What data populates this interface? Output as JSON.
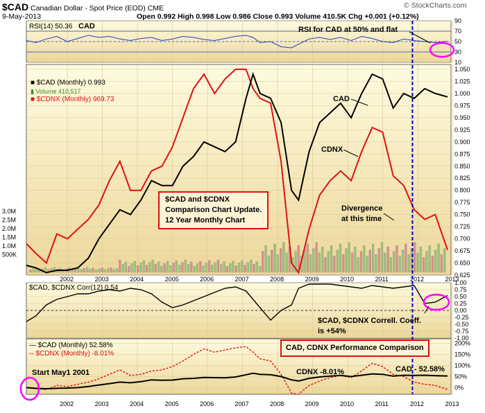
{
  "header": {
    "symbol": "$CAD",
    "name": "Canadian Dollar - Spot Price (EOD)",
    "exchange": "CME",
    "date": "9-May-2013",
    "watermark": "© StockCharts.com",
    "ohlc": "Open 0.992   High 0.998   Low 0.986   Close 0.993   Volume 410.5K   Chg +0.001 (+0.12%)"
  },
  "colors": {
    "cad": "#000000",
    "cdnx": "#e01010",
    "rsi": "#2040c8",
    "panel_top": "#fff6cc",
    "panel_bottom": "#e8d8a0",
    "marker": "#ff00ff",
    "divider": "#0000c0"
  },
  "panels": {
    "rsi": {
      "label": "RSI(14) 50.36",
      "tag": "CAD",
      "ticks": [
        "90",
        "70",
        "50",
        "30",
        "10"
      ]
    },
    "main": {
      "legend": [
        "$CAD (Monthly) 0.993",
        "Volume 410,517",
        "$CDNX (Monthly) 969.73"
      ],
      "right_ticks": [
        "1.050",
        "1.025",
        "1.000",
        "0.975",
        "0.950",
        "0.925",
        "0.900",
        "0.875",
        "0.850",
        "0.825",
        "0.800",
        "0.775",
        "0.750",
        "0.725",
        "0.700",
        "0.675",
        "0.650",
        "0.625"
      ],
      "left_ticks": [
        "3.0M",
        "2.5M",
        "2.0M",
        "1.5M",
        "1.0M",
        "500K"
      ]
    },
    "corr": {
      "label": "$CAD, $CDNX Corr(12) 0.54",
      "ticks": [
        "1.00",
        "0.75",
        "0.50",
        "0.25",
        "0.00",
        "-0.25",
        "-0.50",
        "-0.75",
        "-1.00"
      ]
    },
    "perf": {
      "legend": [
        "$CAD (Monthly) 52.58%",
        "$CDNX (Monthly) -8.01%"
      ],
      "ticks": [
        "200%",
        "150%",
        "100%",
        "50%",
        "0%"
      ]
    }
  },
  "years": [
    "2002",
    "2003",
    "2004",
    "2005",
    "2006",
    "2007",
    "2008",
    "2009",
    "2010",
    "2011",
    "2012",
    "2013"
  ],
  "annotations": {
    "rsi_note": "RSI for CAD at 50% and flat",
    "cad_label": "CAD",
    "cdnx_label": "CDNX",
    "box_title": [
      "$CAD and $CDNX",
      "Comparison Chart Update.",
      "12 Year Monthly Chart"
    ],
    "divergence": [
      "Divergence",
      "at this time"
    ],
    "corr_note": [
      "$CAD, $CDNX Correll. Coeff.",
      "is +54%"
    ],
    "perf_box": "CAD, CDNX Performance Comparison",
    "start": "Start May1 2001",
    "cdnx_perf": "CDNX -8.01%",
    "cad_perf": "CAD - 52.58%"
  },
  "chart_data": {
    "type": "line",
    "x_years": [
      2001.33,
      2001.6,
      2001.9,
      2002.2,
      2002.5,
      2002.8,
      2003.1,
      2003.4,
      2003.7,
      2004.0,
      2004.3,
      2004.6,
      2004.9,
      2005.2,
      2005.5,
      2005.8,
      2006.1,
      2006.4,
      2006.7,
      2007.0,
      2007.3,
      2007.6,
      2007.8,
      2008.0,
      2008.3,
      2008.6,
      2008.9,
      2009.1,
      2009.4,
      2009.7,
      2010.0,
      2010.3,
      2010.6,
      2010.9,
      2011.2,
      2011.5,
      2011.8,
      2012.1,
      2012.4,
      2012.7,
      2013.0,
      2013.35
    ],
    "series": [
      {
        "name": "$CAD (Monthly)",
        "values": [
          0.645,
          0.64,
          0.63,
          0.635,
          0.635,
          0.64,
          0.66,
          0.7,
          0.73,
          0.76,
          0.75,
          0.78,
          0.82,
          0.81,
          0.81,
          0.85,
          0.87,
          0.9,
          0.89,
          0.88,
          0.9,
          0.99,
          1.04,
          1.0,
          0.99,
          0.94,
          0.8,
          0.78,
          0.88,
          0.94,
          0.96,
          0.98,
          0.95,
          1.0,
          1.04,
          1.03,
          0.97,
          1.0,
          0.99,
          1.01,
          1.0,
          0.993
        ]
      },
      {
        "name": "$CDNX (Monthly)",
        "values": [
          0.69,
          0.67,
          0.65,
          0.71,
          0.7,
          0.72,
          0.74,
          0.77,
          0.82,
          0.86,
          0.8,
          0.8,
          0.84,
          0.85,
          0.89,
          0.95,
          1.01,
          1.04,
          1.0,
          1.03,
          1.05,
          1.05,
          1.01,
          0.99,
          0.98,
          0.86,
          0.65,
          0.63,
          0.72,
          0.79,
          0.82,
          0.84,
          0.82,
          0.88,
          0.93,
          0.92,
          0.83,
          0.81,
          0.76,
          0.74,
          0.75,
          0.677
        ]
      }
    ],
    "rsi": [
      52,
      48,
      55,
      60,
      50,
      56,
      62,
      58,
      60,
      55,
      52,
      56,
      58,
      52,
      55,
      60,
      58,
      54,
      52,
      56,
      60,
      62,
      58,
      48,
      50,
      40,
      38,
      45,
      55,
      58,
      54,
      58,
      52,
      60,
      56,
      50,
      48,
      55,
      52,
      50,
      48,
      50.36
    ],
    "corr": [
      -0.4,
      -0.2,
      0.2,
      0.4,
      0.5,
      0.6,
      0.6,
      0.7,
      0.75,
      0.7,
      0.8,
      0.75,
      0.6,
      0.3,
      0.1,
      0.2,
      0.35,
      0.5,
      0.65,
      0.8,
      0.85,
      0.7,
      0.4,
      0.1,
      -0.35,
      0.0,
      0.2,
      0.8,
      0.95,
      0.95,
      0.95,
      0.9,
      0.85,
      0.8,
      0.9,
      0.85,
      0.8,
      0.85,
      0.9,
      0.25,
      0.3,
      0.54
    ],
    "cad_perf": [
      0,
      -3,
      -5,
      -3,
      -2,
      0,
      5,
      12,
      18,
      25,
      22,
      27,
      35,
      33,
      34,
      40,
      42,
      46,
      45,
      44,
      48,
      58,
      65,
      60,
      58,
      50,
      35,
      30,
      42,
      48,
      52,
      55,
      50,
      56,
      62,
      60,
      52,
      56,
      55,
      56,
      54,
      52.58
    ],
    "cdnx_perf": [
      0,
      -5,
      -8,
      10,
      5,
      15,
      25,
      40,
      60,
      80,
      55,
      60,
      75,
      80,
      95,
      120,
      150,
      175,
      160,
      170,
      180,
      185,
      160,
      130,
      120,
      60,
      -25,
      -30,
      10,
      30,
      45,
      55,
      45,
      75,
      110,
      95,
      60,
      50,
      25,
      15,
      10,
      -8.01
    ],
    "rsi_range": [
      10,
      90
    ],
    "price_range": [
      0.625,
      1.06
    ],
    "corr_range": [
      -1,
      1
    ],
    "perf_range": [
      -30,
      220
    ]
  }
}
